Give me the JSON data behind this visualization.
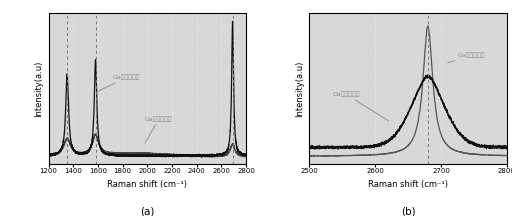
{
  "panel_a": {
    "xlim": [
      1200,
      2800
    ],
    "xticks": [
      1200,
      1400,
      1600,
      1800,
      2000,
      2200,
      2400,
      2600,
      2800
    ],
    "xlabel": "Raman shift (cm⁻¹)",
    "ylabel": "Intensity(a.u)",
    "title": "(a)",
    "vlines": [
      1350,
      1580,
      2690
    ],
    "label_after": "Ga离子辐射后",
    "label_before": "Ga离子辐射前"
  },
  "panel_b": {
    "xlim": [
      2500,
      2800
    ],
    "xticks": [
      2500,
      2600,
      2700,
      2800
    ],
    "xlabel": "Raman shift (cm⁻¹)",
    "ylabel": "Intensity(a.u)",
    "title": "(b)",
    "vlines": [
      2680
    ],
    "label_before": "Ga离子辐射后",
    "label_after": "Ga离子辐射前"
  },
  "bg_color": "#d8d8d8",
  "line_color_top": "#111111",
  "line_color_bottom": "#555555",
  "annotation_color": "#888888",
  "vline_color": "#777777"
}
